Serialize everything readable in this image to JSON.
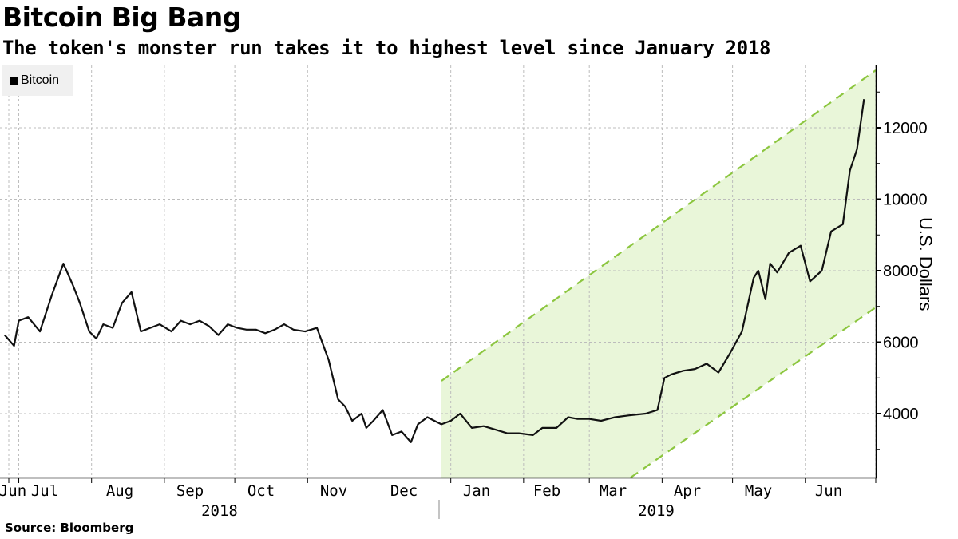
{
  "header": {
    "title": "Bitcoin Big Bang",
    "subtitle": "The token's monster run takes it to highest level since January 2018"
  },
  "legend": {
    "items": [
      {
        "label": "Bitcoin",
        "color": "#000000",
        "icon": "square-swatch-icon"
      }
    ]
  },
  "axes": {
    "y_title": "U.S. Dollars",
    "y_ticks": [
      "12000",
      "10000",
      "8000",
      "6000",
      "4000"
    ],
    "x_months": [
      "Jun",
      "Jul",
      "Aug",
      "Sep",
      "Oct",
      "Nov",
      "Dec",
      "Jan",
      "Feb",
      "Mar",
      "Apr",
      "May",
      "Jun"
    ],
    "x_years": [
      "2018",
      "2019"
    ]
  },
  "footer": {
    "source": "Source: Bloomberg"
  },
  "colors": {
    "line": "#111111",
    "channel_fill": "#e9f6d9",
    "channel_dash": "#8cc63f",
    "grid": "#bbbbbb"
  },
  "chart_data": {
    "type": "line",
    "title": "Bitcoin Big Bang",
    "subtitle": "The token's monster run takes it to highest level since January 2018",
    "xlabel": "",
    "ylabel": "U.S. Dollars",
    "ylim": [
      2200,
      13800
    ],
    "y_ticks": [
      4000,
      6000,
      8000,
      10000,
      12000
    ],
    "grid": true,
    "legend_position": "top-left",
    "series": [
      {
        "name": "Bitcoin",
        "x": [
          "2018-06-25",
          "2018-06-29",
          "2018-07-01",
          "2018-07-05",
          "2018-07-10",
          "2018-07-15",
          "2018-07-20",
          "2018-07-24",
          "2018-07-27",
          "2018-07-31",
          "2018-08-03",
          "2018-08-06",
          "2018-08-10",
          "2018-08-14",
          "2018-08-18",
          "2018-08-22",
          "2018-08-26",
          "2018-08-30",
          "2018-09-04",
          "2018-09-08",
          "2018-09-12",
          "2018-09-16",
          "2018-09-20",
          "2018-09-24",
          "2018-09-28",
          "2018-10-02",
          "2018-10-06",
          "2018-10-10",
          "2018-10-14",
          "2018-10-18",
          "2018-10-22",
          "2018-10-26",
          "2018-10-31",
          "2018-11-05",
          "2018-11-10",
          "2018-11-14",
          "2018-11-17",
          "2018-11-20",
          "2018-11-24",
          "2018-11-26",
          "2018-11-29",
          "2018-12-03",
          "2018-12-07",
          "2018-12-11",
          "2018-12-15",
          "2018-12-18",
          "2018-12-22",
          "2018-12-25",
          "2018-12-28",
          "2019-01-01",
          "2019-01-05",
          "2019-01-10",
          "2019-01-15",
          "2019-01-20",
          "2019-01-25",
          "2019-01-30",
          "2019-02-05",
          "2019-02-09",
          "2019-02-15",
          "2019-02-20",
          "2019-02-24",
          "2019-03-01",
          "2019-03-06",
          "2019-03-12",
          "2019-03-18",
          "2019-03-25",
          "2019-03-30",
          "2019-04-02",
          "2019-04-05",
          "2019-04-10",
          "2019-04-15",
          "2019-04-20",
          "2019-04-25",
          "2019-04-30",
          "2019-05-05",
          "2019-05-10",
          "2019-05-12",
          "2019-05-15",
          "2019-05-17",
          "2019-05-20",
          "2019-05-25",
          "2019-05-30",
          "2019-06-03",
          "2019-06-08",
          "2019-06-12",
          "2019-06-17",
          "2019-06-20",
          "2019-06-23",
          "2019-06-26"
        ],
        "values": [
          6200,
          5900,
          6600,
          6700,
          6300,
          7300,
          8200,
          7600,
          7100,
          6300,
          6100,
          6500,
          6400,
          7100,
          7400,
          6300,
          6400,
          6500,
          6300,
          6600,
          6500,
          6600,
          6450,
          6200,
          6500,
          6400,
          6350,
          6350,
          6250,
          6350,
          6500,
          6350,
          6300,
          6400,
          5500,
          4400,
          4200,
          3800,
          4000,
          3600,
          3800,
          4100,
          3400,
          3500,
          3200,
          3700,
          3900,
          3800,
          3700,
          3800,
          4000,
          3600,
          3650,
          3550,
          3450,
          3450,
          3400,
          3600,
          3600,
          3900,
          3850,
          3850,
          3800,
          3900,
          3950,
          4000,
          4100,
          5000,
          5100,
          5200,
          5250,
          5400,
          5150,
          5700,
          6300,
          7800,
          8000,
          7200,
          8200,
          7950,
          8500,
          8700,
          7700,
          8000,
          9100,
          9300,
          10800,
          11400,
          12800
        ]
      }
    ],
    "annotations": [
      {
        "type": "trend-channel",
        "description": "Green shaded upward channel with dashed boundaries starting late Dec 2018",
        "upper": {
          "start": [
            "2018-12-31",
            4900
          ],
          "end": [
            "2019-07-01",
            13600
          ]
        },
        "lower": {
          "start": [
            "2019-03-20",
            2200
          ],
          "end": [
            "2019-07-01",
            7000
          ]
        }
      }
    ],
    "source": "Source: Bloomberg"
  }
}
